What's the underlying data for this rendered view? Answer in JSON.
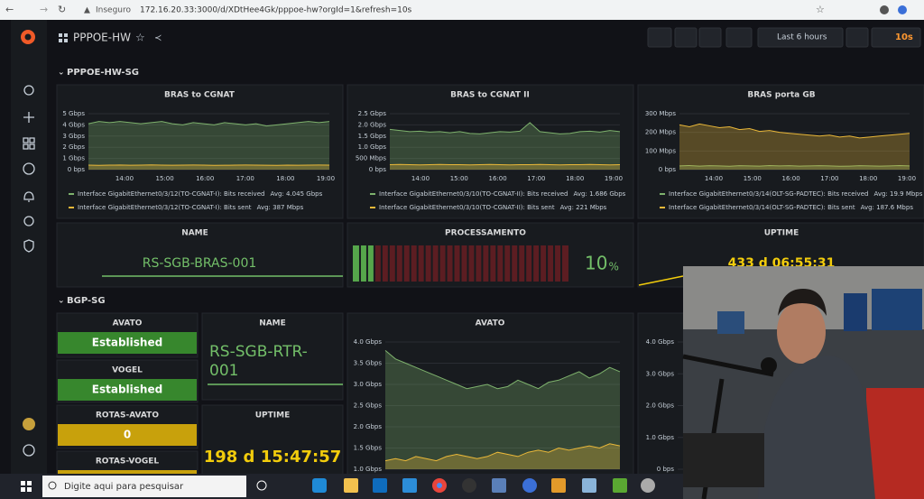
{
  "browser": {
    "security": "Inseguro",
    "url": "172.16.20.33:3000/d/XDtHee4Gk/pppoe-hw?orgId=1&refresh=10s"
  },
  "dashboard": {
    "title": "PPPOE-HW",
    "time_range": "Last 6 hours",
    "refresh": "10s"
  },
  "rows": [
    {
      "title": "PPPOE-HW-SG"
    },
    {
      "title": "BGP-SG"
    }
  ],
  "graphs": [
    {
      "title": "BRAS to CGNAT",
      "ylim": [
        0,
        5
      ],
      "yticks": [
        {
          "value": 0,
          "label": "0 bps"
        },
        {
          "value": 1,
          "label": "1 Gbps"
        },
        {
          "value": 2,
          "label": "2 Gbps"
        },
        {
          "value": 3,
          "label": "3 Gbps"
        },
        {
          "value": 4,
          "label": "4 Gbps"
        },
        {
          "value": 5,
          "label": "5 Gbps"
        }
      ],
      "xticks": [
        "14:00",
        "15:00",
        "16:00",
        "17:00",
        "18:00",
        "19:00"
      ],
      "series": [
        {
          "name": "Interface GigabitEthernet0/3/12(TO-CGNAT-I): Bits received",
          "avg": "Avg: 4.045 Gbps",
          "color": "#7eb26d",
          "values": [
            4.1,
            4.3,
            4.2,
            4.3,
            4.2,
            4.1,
            4.2,
            4.3,
            4.1,
            4.0,
            4.2,
            4.1,
            4.0,
            4.2,
            4.1,
            4.0,
            4.1,
            3.9,
            4.0,
            4.1,
            4.2,
            4.3,
            4.2,
            4.3
          ]
        },
        {
          "name": "Interface GigabitEthernet0/3/12(TO-CGNAT-I): Bits sent",
          "avg": "Avg: 387 Mbps",
          "color": "#eab839",
          "values": [
            0.4,
            0.38,
            0.4,
            0.41,
            0.39,
            0.4,
            0.42,
            0.4,
            0.39,
            0.4,
            0.41,
            0.4,
            0.38,
            0.39,
            0.4,
            0.41,
            0.4,
            0.39,
            0.38,
            0.4,
            0.39,
            0.4,
            0.41,
            0.4
          ]
        }
      ]
    },
    {
      "title": "BRAS to CGNAT II",
      "ylim": [
        0,
        2.5
      ],
      "yticks": [
        {
          "value": 0,
          "label": "0 bps"
        },
        {
          "value": 0.5,
          "label": "500 Mbps"
        },
        {
          "value": 1,
          "label": "1.0 Gbps"
        },
        {
          "value": 1.5,
          "label": "1.5 Gbps"
        },
        {
          "value": 2,
          "label": "2.0 Gbps"
        },
        {
          "value": 2.5,
          "label": "2.5 Gbps"
        }
      ],
      "xticks": [
        "14:00",
        "15:00",
        "16:00",
        "17:00",
        "18:00",
        "19:00"
      ],
      "series": [
        {
          "name": "Interface GigabitEthernet0/3/10(TO-CGNAT-II): Bits received",
          "avg": "Avg: 1.686 Gbps",
          "color": "#7eb26d",
          "values": [
            1.8,
            1.75,
            1.7,
            1.72,
            1.68,
            1.7,
            1.65,
            1.7,
            1.62,
            1.6,
            1.65,
            1.7,
            1.68,
            1.72,
            2.1,
            1.7,
            1.65,
            1.6,
            1.62,
            1.7,
            1.72,
            1.68,
            1.75,
            1.7
          ]
        },
        {
          "name": "Interface GigabitEthernet0/3/10(TO-CGNAT-II): Bits sent",
          "avg": "Avg: 221 Mbps",
          "color": "#eab839",
          "values": [
            0.22,
            0.23,
            0.22,
            0.21,
            0.22,
            0.23,
            0.22,
            0.22,
            0.21,
            0.22,
            0.23,
            0.22,
            0.21,
            0.22,
            0.22,
            0.23,
            0.22,
            0.21,
            0.22,
            0.22,
            0.23,
            0.22,
            0.21,
            0.22
          ]
        }
      ]
    },
    {
      "title": "BRAS porta GB",
      "ylim": [
        0,
        300
      ],
      "yticks": [
        {
          "value": 0,
          "label": "0 bps"
        },
        {
          "value": 100,
          "label": "100 Mbps"
        },
        {
          "value": 200,
          "label": "200 Mbps"
        },
        {
          "value": 300,
          "label": "300 Mbps"
        }
      ],
      "xticks": [
        "14:00",
        "15:00",
        "16:00",
        "17:00",
        "18:00",
        "19:00"
      ],
      "series": [
        {
          "name": "Interface GigabitEthernet0/3/14(OLT-SG-PADTEC): Bits received",
          "avg": "Avg: 19.9 Mbps",
          "color": "#7eb26d",
          "values": [
            20,
            22,
            19,
            21,
            20,
            18,
            21,
            20,
            19,
            22,
            20,
            21,
            19,
            20,
            21,
            20,
            18,
            19,
            21,
            20,
            19,
            20,
            22,
            20
          ]
        },
        {
          "name": "Interface GigabitEthernet0/3/14(OLT-SG-PADTEC): Bits sent",
          "avg": "Avg: 187.6 Mbps",
          "color": "#eab839",
          "values": [
            240,
            230,
            245,
            235,
            225,
            230,
            215,
            220,
            205,
            210,
            200,
            195,
            190,
            185,
            180,
            185,
            175,
            180,
            170,
            175,
            180,
            185,
            190,
            195
          ]
        }
      ]
    },
    {
      "title": "AVATO",
      "ylim": [
        1,
        4
      ],
      "yticks": [
        {
          "value": 1,
          "label": "1.0 Gbps"
        },
        {
          "value": 1.5,
          "label": "1.5 Gbps"
        },
        {
          "value": 2,
          "label": "2.0 Gbps"
        },
        {
          "value": 2.5,
          "label": "2.5 Gbps"
        },
        {
          "value": 3,
          "label": "3.0 Gbps"
        },
        {
          "value": 3.5,
          "label": "3.5 Gbps"
        },
        {
          "value": 4,
          "label": "4.0 Gbps"
        }
      ],
      "series": [
        {
          "color": "#7eb26d",
          "values": [
            3.8,
            3.6,
            3.5,
            3.4,
            3.3,
            3.2,
            3.1,
            3.0,
            2.9,
            2.95,
            3.0,
            2.9,
            2.95,
            3.1,
            3.0,
            2.9,
            3.05,
            3.1,
            3.2,
            3.3,
            3.15,
            3.25,
            3.4,
            3.3
          ]
        },
        {
          "color": "#eab839",
          "values": [
            1.2,
            1.25,
            1.2,
            1.3,
            1.25,
            1.2,
            1.3,
            1.35,
            1.3,
            1.25,
            1.3,
            1.4,
            1.35,
            1.3,
            1.4,
            1.45,
            1.4,
            1.5,
            1.45,
            1.5,
            1.55,
            1.5,
            1.6,
            1.55
          ]
        }
      ]
    },
    {
      "ylim": [
        0,
        4
      ],
      "yticks": [
        {
          "value": 0,
          "label": "0 bps"
        },
        {
          "value": 1,
          "label": "1.0 Gbps"
        },
        {
          "value": 2,
          "label": "2.0 Gbps"
        },
        {
          "value": 3,
          "label": "3.0 Gbps"
        },
        {
          "value": 4,
          "label": "4.0 Gbps"
        }
      ]
    }
  ],
  "name_panel": {
    "title": "NAME",
    "value": "RS-SGB-BRAS-001"
  },
  "processing": {
    "title": "PROCESSAMENTO",
    "value": 10,
    "unit": "%",
    "min": 0,
    "max": 100
  },
  "uptime_panel": {
    "title": "UPTIME",
    "value": "433 d 06:55:31"
  },
  "bgp_stats": [
    {
      "title": "AVATO",
      "value": "Established",
      "color": "#37872d"
    },
    {
      "title": "VOGEL",
      "value": "Established",
      "color": "#37872d"
    },
    {
      "title": "ROTAS-AVATO",
      "value": 0,
      "color": "#c8a10c"
    },
    {
      "title": "ROTAS-VOGEL",
      "color": "#c8a10c"
    }
  ],
  "bgp_name": {
    "title": "NAME",
    "value": "RS-SGB-RTR-001"
  },
  "bgp_uptime": {
    "title": "UPTIME",
    "value": "198 d 15:47:57"
  },
  "taskbar": {
    "search": "Digite aqui para pesquisar"
  }
}
